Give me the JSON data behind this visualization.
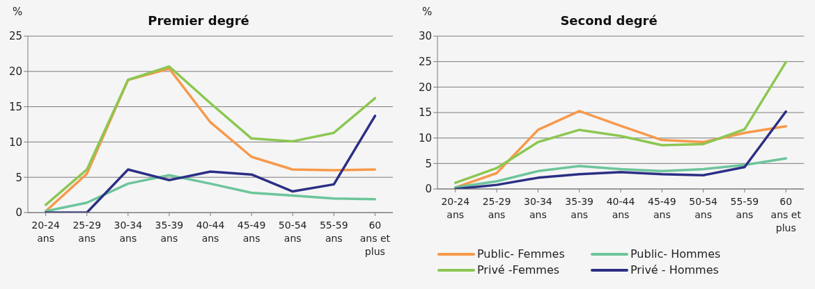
{
  "chart_data": [
    {
      "type": "line",
      "title": "Premier degré",
      "ylabel": "%",
      "categories": [
        "20-24 ans",
        "25-29 ans",
        "30-34 ans",
        "35-39 ans",
        "40-44 ans",
        "45-49 ans",
        "50-54 ans",
        "55-59 ans",
        "60 ans et plus"
      ],
      "ylim": [
        0,
        25
      ],
      "yticks": [
        0,
        5,
        10,
        15,
        20,
        25
      ],
      "grid": "y",
      "legend": false,
      "marker": "none",
      "line_style": "solid",
      "series": [
        {
          "color": "#f7994a",
          "values": [
            0.2,
            5.5,
            18.8,
            20.4,
            12.8,
            7.9,
            6.1,
            6.0,
            6.1
          ]
        },
        {
          "color": "#6cc59b",
          "values": [
            0.2,
            1.4,
            4.1,
            5.3,
            4.1,
            2.8,
            2.4,
            2.0,
            1.9
          ]
        },
        {
          "color": "#8cc751",
          "values": [
            1.1,
            6.1,
            18.8,
            20.7,
            15.5,
            10.5,
            10.1,
            11.3,
            16.2
          ]
        },
        {
          "color": "#2b2f84",
          "values": [
            0,
            0,
            6.1,
            4.6,
            5.8,
            5.4,
            3.0,
            4.0,
            13.7
          ]
        }
      ]
    },
    {
      "type": "line",
      "title": "Second degré",
      "ylabel": "%",
      "categories": [
        "20-24 ans",
        "25-29 ans",
        "30-34 ans",
        "35-39 ans",
        "40-44 ans",
        "45-49 ans",
        "50-54 ans",
        "55-59 ans",
        "60 ans et plus"
      ],
      "ylim": [
        0,
        30
      ],
      "yticks": [
        0,
        5,
        10,
        15,
        20,
        25,
        30
      ],
      "grid": "y",
      "legend": "bottom",
      "marker": "none",
      "line_style": "solid",
      "series": [
        {
          "name": "Public- Femmes",
          "color": "#f7994a",
          "values": [
            0.3,
            3.1,
            11.6,
            15.3,
            12.4,
            9.6,
            9.2,
            11.0,
            12.3
          ]
        },
        {
          "name": "Public- Hommes",
          "color": "#6cc59b",
          "values": [
            0.3,
            1.5,
            3.5,
            4.5,
            3.9,
            3.5,
            3.9,
            4.7,
            6.0
          ]
        },
        {
          "name": "Privé -Femmes",
          "color": "#8cc751",
          "values": [
            1.2,
            4.1,
            9.2,
            11.6,
            10.4,
            8.6,
            8.8,
            11.7,
            24.9
          ]
        },
        {
          "name": "Privé - Hommes",
          "color": "#2b2f84",
          "values": [
            0,
            0.8,
            2.2,
            2.9,
            3.3,
            2.9,
            2.7,
            4.3,
            15.2
          ]
        }
      ]
    }
  ]
}
